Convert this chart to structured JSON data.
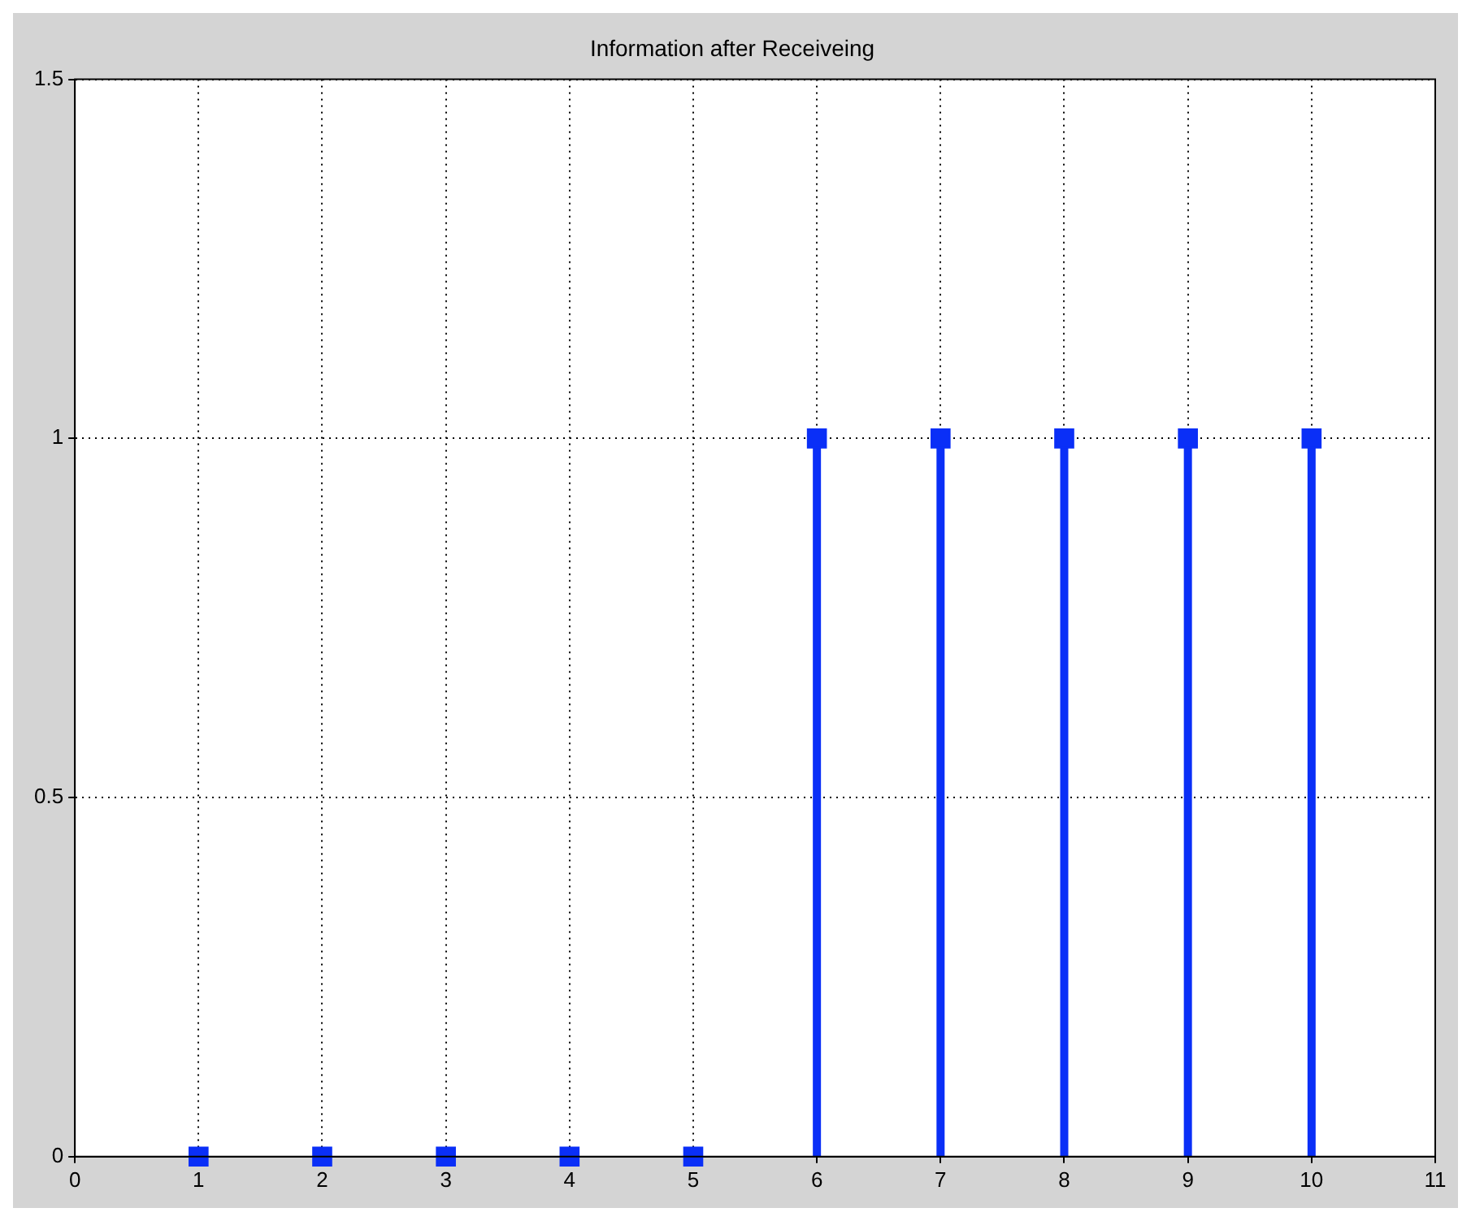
{
  "chart_data": {
    "type": "lollipop",
    "title": "Information after Receiveing",
    "x": [
      1,
      2,
      3,
      4,
      5,
      6,
      7,
      8,
      9,
      10
    ],
    "values": [
      0,
      0,
      0,
      0,
      0,
      1,
      1,
      1,
      1,
      1
    ],
    "color": "#0a2ff7",
    "xlim": [
      0,
      11
    ],
    "xticks": [
      0,
      1,
      2,
      3,
      4,
      5,
      6,
      7,
      8,
      9,
      10,
      11
    ],
    "ylim": [
      0,
      1.5
    ],
    "yticks": [
      0,
      0.5,
      1,
      1.5
    ],
    "grid": true,
    "marker": "square"
  }
}
